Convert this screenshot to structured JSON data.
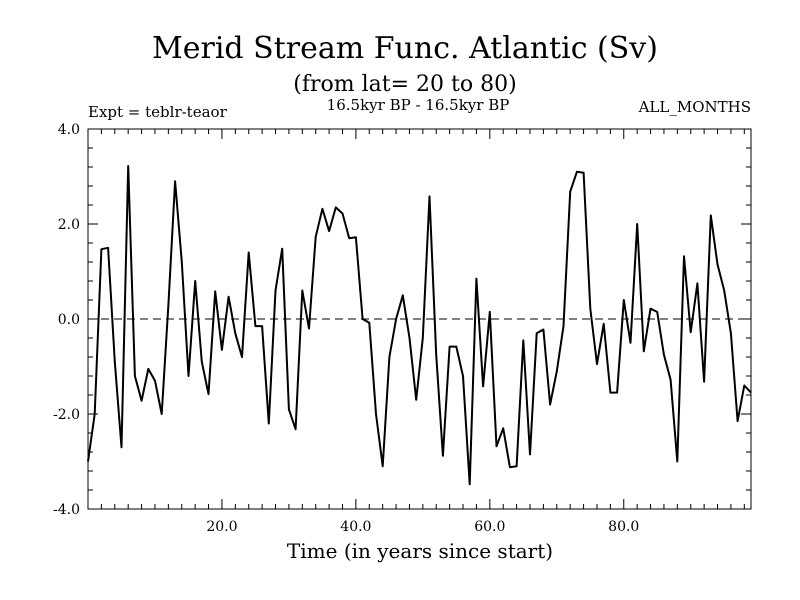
{
  "chart_data": {
    "type": "line",
    "title": "Merid Stream Func. Atlantic (Sv)",
    "subtitle": "(from lat= 20 to 80)",
    "period_label": "16.5kyr BP - 16.5kyr BP",
    "expt_label": "Expt = teblr-teaor",
    "months_label": "ALL_MONTHS",
    "xlabel": "Time (in years since start)",
    "ylabel": "",
    "xlim": [
      0,
      99
    ],
    "ylim": [
      -4.0,
      4.0
    ],
    "x_ticks": [
      20,
      40,
      60,
      80
    ],
    "x_tick_labels": [
      "20.0",
      "40.0",
      "60.0",
      "80.0"
    ],
    "y_ticks": [
      -4,
      -2,
      0,
      2,
      4
    ],
    "y_tick_labels": [
      "-4.0",
      "-2.0",
      "0.0",
      "2.0",
      "4.0"
    ],
    "zero_line": "dashed",
    "series": [
      {
        "name": "Merid Stream Func. Atlantic",
        "x": [
          0,
          1,
          2,
          3,
          4,
          5,
          6,
          7,
          8,
          9,
          10,
          11,
          12,
          13,
          14,
          15,
          16,
          17,
          18,
          19,
          20,
          21,
          22,
          23,
          24,
          25,
          26,
          27,
          28,
          29,
          30,
          31,
          32,
          33,
          34,
          35,
          36,
          37,
          38,
          39,
          40,
          41,
          42,
          43,
          44,
          45,
          46,
          47,
          48,
          49,
          50,
          51,
          52,
          53,
          54,
          55,
          56,
          57,
          58,
          59,
          60,
          61,
          62,
          63,
          64,
          65,
          66,
          67,
          68,
          69,
          70,
          71,
          72,
          73,
          74,
          75,
          76,
          77,
          78,
          79,
          80,
          81,
          82,
          83,
          84,
          85,
          86,
          87,
          88,
          89,
          90,
          91,
          92,
          93,
          94,
          95,
          96,
          97,
          98,
          99
        ],
        "values": [
          -3.0,
          -2.0,
          1.47,
          1.5,
          -0.9,
          -2.7,
          3.22,
          -1.2,
          -1.72,
          -1.05,
          -1.3,
          -2.0,
          0.3,
          2.9,
          1.2,
          -1.2,
          0.8,
          -0.9,
          -1.58,
          0.58,
          -0.65,
          0.47,
          -0.3,
          -0.8,
          1.4,
          -0.15,
          -0.15,
          -2.2,
          0.6,
          1.48,
          -1.9,
          -2.32,
          0.6,
          -0.2,
          1.73,
          2.32,
          1.85,
          2.35,
          2.22,
          1.7,
          1.72,
          0.0,
          -0.08,
          -2.0,
          -3.1,
          -0.8,
          0.0,
          0.5,
          -0.4,
          -1.7,
          -0.4,
          2.58,
          -0.75,
          -2.88,
          -0.58,
          -0.58,
          -1.2,
          -3.48,
          0.85,
          -1.42,
          0.15,
          -2.68,
          -2.3,
          -3.12,
          -3.1,
          -0.45,
          -2.85,
          -0.3,
          -0.22,
          -1.8,
          -1.1,
          -0.15,
          2.68,
          3.1,
          3.08,
          0.22,
          -0.95,
          -0.1,
          -1.55,
          -1.55,
          0.4,
          -0.5,
          2.0,
          -0.68,
          0.22,
          0.15,
          -0.75,
          -1.28,
          -3.0,
          1.32,
          -0.28,
          0.75,
          -1.32,
          2.18,
          1.15,
          0.6,
          -0.3,
          -2.15,
          -1.4,
          -1.55
        ]
      }
    ]
  }
}
